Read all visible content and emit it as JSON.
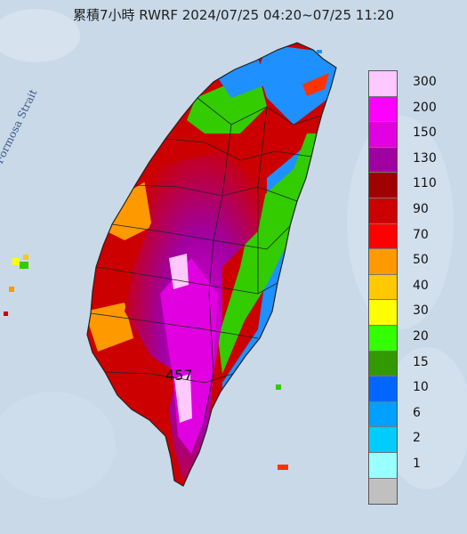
{
  "title": "累積7小時 RWRF 2024/07/25 04:20~07/25 11:20",
  "strait_label": "Formosa Strait",
  "max_label": "457",
  "legend": {
    "labels": [
      "300",
      "200",
      "150",
      "130",
      "110",
      "90",
      "70",
      "50",
      "40",
      "30",
      "20",
      "15",
      "10",
      "6",
      "2",
      "1"
    ],
    "colors": [
      "#ffc8ff",
      "#ff00ff",
      "#e000e0",
      "#a000a0",
      "#a00000",
      "#cc0000",
      "#ff0000",
      "#ff9900",
      "#ffc800",
      "#ffff00",
      "#33ff00",
      "#339900",
      "#0066ff",
      "#00a0ff",
      "#00ccff",
      "#99ffff",
      "#c0c0c0"
    ]
  },
  "colors": {
    "sea": "#c9d9e8",
    "land": "#d6e7f2",
    "county_line": "#222222"
  }
}
